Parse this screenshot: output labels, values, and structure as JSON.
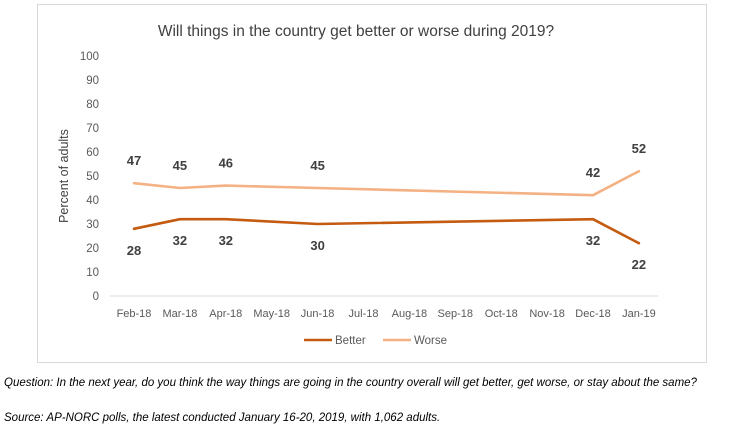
{
  "chart_data": {
    "type": "line",
    "title": "Will things in the country get better or worse during 2019?",
    "xlabel": "",
    "ylabel": "Percent of adults",
    "ylim": [
      0,
      100
    ],
    "yticks": [
      0,
      10,
      20,
      30,
      40,
      50,
      60,
      70,
      80,
      90,
      100
    ],
    "grid": false,
    "legend_position": "bottom",
    "categories": [
      "Feb-18",
      "Mar-18",
      "Apr-18",
      "May-18",
      "Jun-18",
      "Jul-18",
      "Aug-18",
      "Sep-18",
      "Oct-18",
      "Nov-18",
      "Dec-18",
      "Jan-19"
    ],
    "series": [
      {
        "name": "Better",
        "color": "#c55a11",
        "points": [
          {
            "x": "Feb-18",
            "y": 28
          },
          {
            "x": "Mar-18",
            "y": 32
          },
          {
            "x": "Apr-18",
            "y": 32
          },
          {
            "x": "Jun-18",
            "y": 30
          },
          {
            "x": "Dec-18",
            "y": 32
          },
          {
            "x": "Jan-19",
            "y": 22
          }
        ]
      },
      {
        "name": "Worse",
        "color": "#f4b183",
        "points": [
          {
            "x": "Feb-18",
            "y": 47
          },
          {
            "x": "Mar-18",
            "y": 45
          },
          {
            "x": "Apr-18",
            "y": 46
          },
          {
            "x": "Jun-18",
            "y": 45
          },
          {
            "x": "Dec-18",
            "y": 42
          },
          {
            "x": "Jan-19",
            "y": 52
          }
        ]
      }
    ]
  },
  "notes": {
    "question": "Question: In the next year, do you think the way things are going in the country overall will get better, get worse, or stay about the same?",
    "source": "Source: AP-NORC polls, the latest conducted January 16-20, 2019, with 1,062 adults."
  }
}
